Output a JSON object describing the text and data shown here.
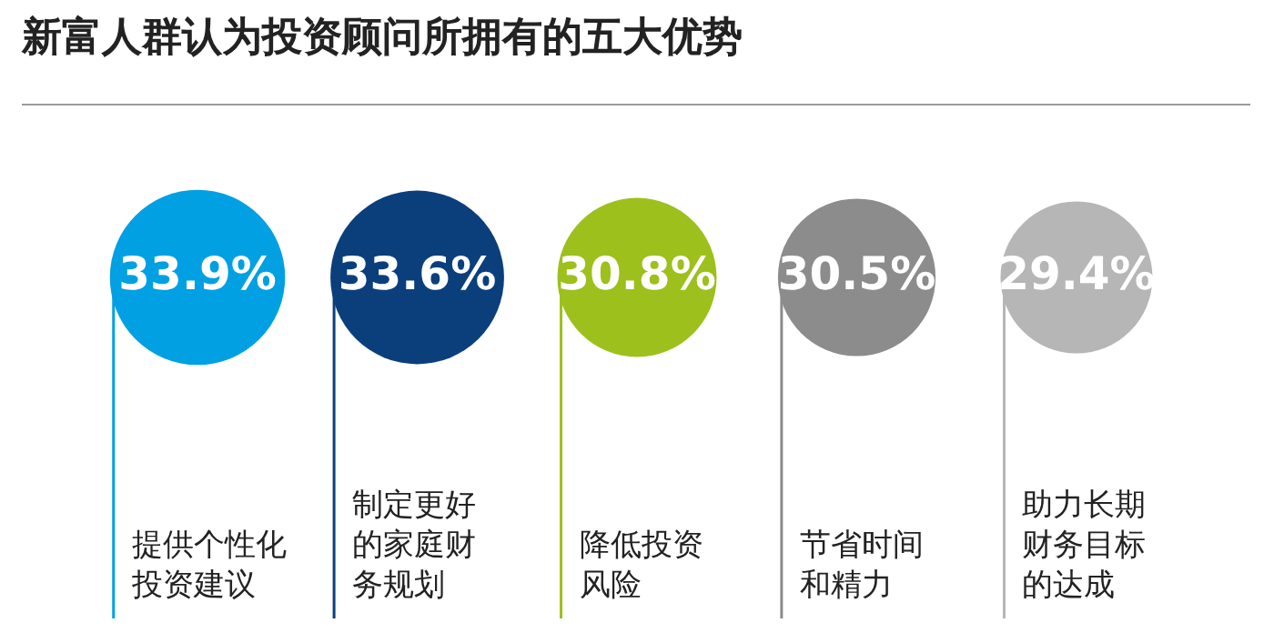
{
  "chart_data": {
    "type": "other",
    "title": "新富人群认为投资顾问所拥有的五大优势",
    "categories": [
      "提供个性化投资建议",
      "制定更好的家庭财务规划",
      "降低投资风险",
      "节省时间和精力",
      "助力长期财务目标的达成"
    ],
    "values": [
      33.9,
      33.6,
      30.8,
      30.5,
      29.4
    ],
    "value_labels": [
      "33.9%",
      "33.6%",
      "30.8%",
      "30.5%",
      "29.4%"
    ],
    "colors": [
      "#00a0e3",
      "#0b3f7c",
      "#9dc01c",
      "#8c8c8c",
      "#b6b6b6"
    ]
  }
}
